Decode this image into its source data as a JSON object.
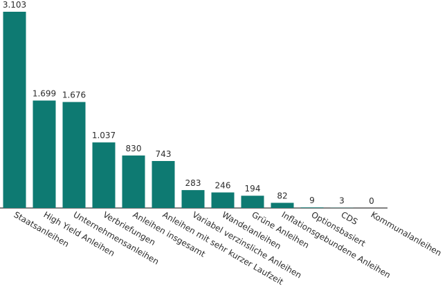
{
  "chart_data": {
    "type": "bar",
    "categories": [
      "Staatsanleihen",
      "High Yield Anleihen",
      "Unternehmensanleihen",
      "Verbriefungen",
      "Anleihen insgesamt",
      "Anleihen mit sehr kurzer Laufzeit",
      "Variabel verzinsliche Anleihen",
      "Wandelanleihen",
      "Grüne Anleihen",
      "Inflationsgebundene Anleihen",
      "Optionsbasiert",
      "CDS",
      "Kommunalanleihen"
    ],
    "values": [
      3103,
      1699,
      1676,
      1037,
      830,
      743,
      283,
      246,
      194,
      82,
      9,
      3,
      0
    ],
    "value_labels": [
      "3.103",
      "1.699",
      "1.676",
      "1.037",
      "830",
      "743",
      "283",
      "246",
      "194",
      "82",
      "9",
      "3",
      "0"
    ],
    "color": "#0e7a72"
  }
}
